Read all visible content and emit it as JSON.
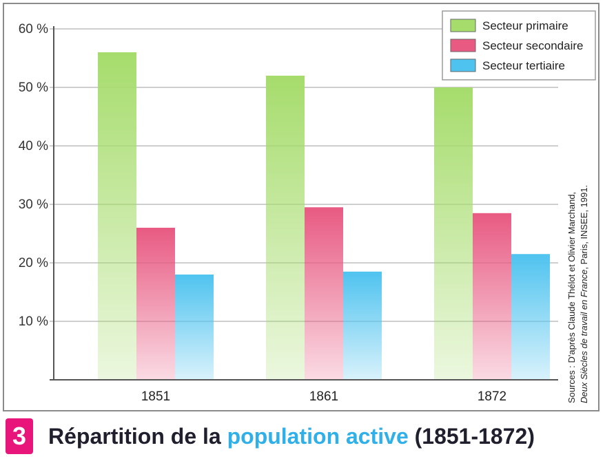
{
  "chart_data": {
    "type": "bar",
    "title": "Répartition de la population active (1851-1872)",
    "categories": [
      "1851",
      "1861",
      "1872"
    ],
    "series": [
      {
        "name": "Secteur primaire",
        "values": [
          56,
          52,
          50
        ],
        "color": "#a6dc6c"
      },
      {
        "name": "Secteur secondaire",
        "values": [
          26,
          29.5,
          28.5
        ],
        "color": "#e85a82"
      },
      {
        "name": "Secteur tertiaire",
        "values": [
          18,
          18.5,
          21.5
        ],
        "color": "#4fc3ef"
      }
    ],
    "ylim": [
      0,
      60
    ],
    "yticks": [
      10,
      20,
      30,
      40,
      50,
      60
    ],
    "ytick_labels": [
      "10 %",
      "20 %",
      "30 %",
      "40 %",
      "50 %",
      "60 %"
    ],
    "xlabel": "",
    "ylabel": "",
    "grid": true,
    "legend_position": "top-right"
  },
  "source": {
    "line1": "Sources : D'après Claude Thélot et Olivier Marchand,",
    "line2_italic": "Deux Siècles de travail en France",
    "line2_rest": ", Paris, INSEE, 1991."
  },
  "caption": {
    "number": "3",
    "title_before": "Répartition de la ",
    "title_highlight": "population active",
    "title_after": " (1851-1872)"
  }
}
